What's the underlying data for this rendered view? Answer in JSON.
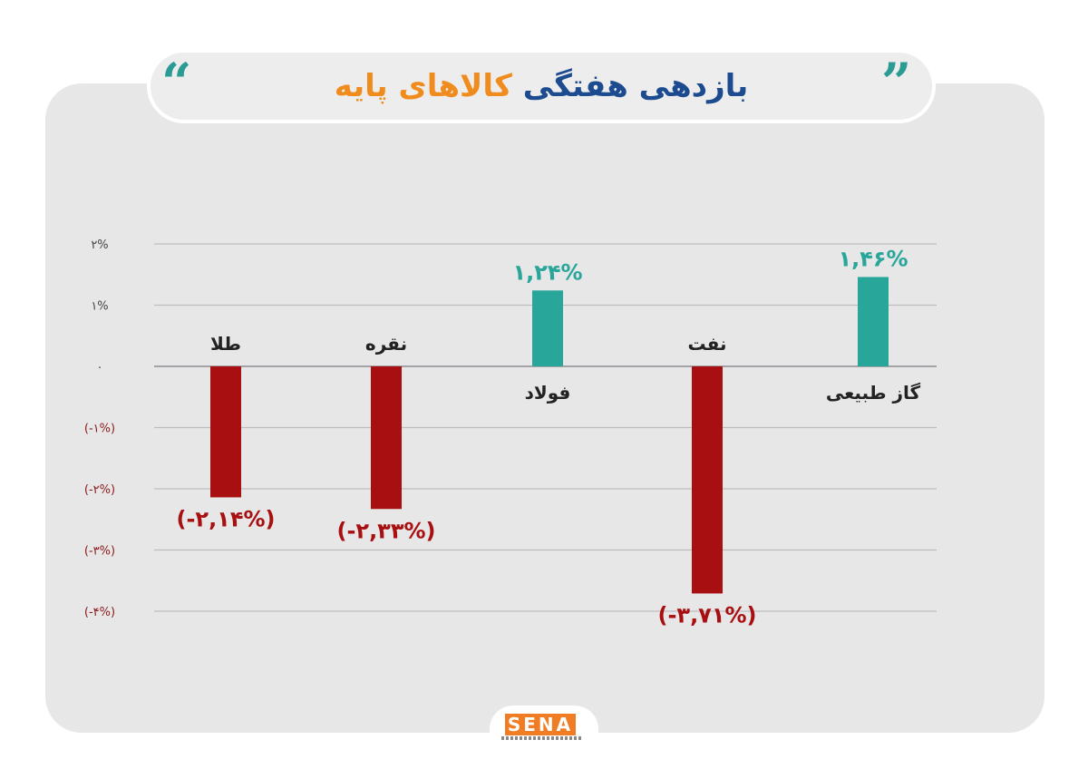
{
  "title": {
    "part1": "بازدهی هفتگی",
    "part2": "کالاهای پایه"
  },
  "quote_glyph_left": "“",
  "quote_glyph_right": "”",
  "logo": {
    "text": "SENA"
  },
  "colors": {
    "positive": "#28a69a",
    "negative": "#a80f10",
    "grid": "#bdbbbe",
    "axis": "#444444",
    "negative_tick": "#8a1a1a",
    "category_label": "#222222"
  },
  "chart_data": {
    "type": "bar",
    "categories": [
      "طلا",
      "نقره",
      "فولاد",
      "نفت",
      "گاز طبیعی"
    ],
    "values": [
      -2.14,
      -2.33,
      1.24,
      -3.71,
      1.46
    ],
    "value_labels": [
      "(-۲,۱۴%)",
      "(-۲,۳۳%)",
      "۱,۲۴%",
      "(-۳,۷۱%)",
      "۱,۴۶%"
    ],
    "ylim": [
      -4,
      2
    ],
    "yticks": [
      2,
      1,
      0,
      -1,
      -2,
      -3,
      -4
    ],
    "ytick_labels": [
      "۲%",
      "۱%",
      "۰",
      "(-۱%)",
      "(-۲%)",
      "(-۳%)",
      "(-۴%)"
    ],
    "grid": true,
    "title": "",
    "xlabel": "",
    "ylabel": ""
  }
}
